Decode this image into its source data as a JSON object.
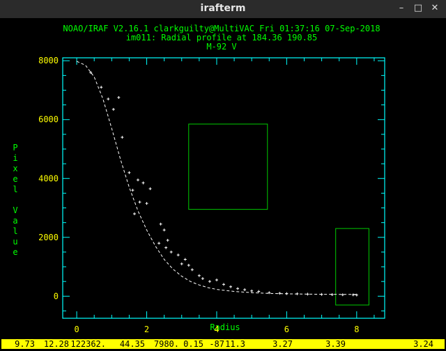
{
  "window": {
    "title": "irafterm",
    "buttons": {
      "minimize": "–",
      "maximize": "□",
      "close": "✕"
    }
  },
  "plot": {
    "header_line1": "NOAO/IRAF V2.16.1 clarkguilty@MultiVAC Fri 01:37:16 07-Sep-2018",
    "header_line2": "im011: Radial profile at 184.36 190.85",
    "header_line3": "M-92 V"
  },
  "chart_data": {
    "type": "scatter",
    "title": "im011: Radial profile at 184.36 190.85",
    "subtitle": "M-92 V",
    "xlabel": "Radius",
    "ylabel": "Pixel Value",
    "xlim": [
      -0.4,
      8.8
    ],
    "ylim": [
      -750,
      8100
    ],
    "x_ticks": [
      "0",
      "2",
      "4",
      "6",
      "8"
    ],
    "x_tick_values": [
      0,
      2,
      4,
      6,
      8
    ],
    "y_ticks": [
      "0",
      "2000",
      "4000",
      "6000",
      "8000"
    ],
    "y_tick_values": [
      0,
      2000,
      4000,
      6000,
      8000
    ],
    "fit_curve": {
      "name": "profile fit",
      "x": [
        0,
        0.25,
        0.5,
        0.75,
        1.0,
        1.25,
        1.5,
        1.75,
        2.0,
        2.25,
        2.5,
        2.75,
        3.0,
        3.25,
        3.5,
        3.75,
        4.0,
        4.5,
        5.0,
        5.5,
        6.0,
        7.0,
        8.0
      ],
      "y": [
        7980,
        7850,
        7450,
        6700,
        5700,
        4650,
        3700,
        2900,
        2250,
        1700,
        1250,
        920,
        680,
        500,
        380,
        290,
        230,
        160,
        120,
        95,
        80,
        65,
        60
      ]
    },
    "points": {
      "name": "pixels",
      "x": [
        0.4,
        0.7,
        0.9,
        1.05,
        1.2,
        1.3,
        1.5,
        1.6,
        1.75,
        1.9,
        2.0,
        2.1,
        1.8,
        1.65,
        2.4,
        2.5,
        2.6,
        2.35,
        2.55,
        2.7,
        2.9,
        3.0,
        3.1,
        3.3,
        3.2,
        3.5,
        3.6,
        3.8,
        4.0,
        4.2,
        4.4,
        4.6,
        4.8,
        5.0,
        5.2,
        5.5,
        5.8,
        6.0,
        6.3,
        6.6,
        7.0,
        7.3,
        7.6,
        7.9,
        8.0
      ],
      "y": [
        7600,
        7100,
        6700,
        6350,
        6750,
        5400,
        4200,
        3600,
        3950,
        3850,
        3150,
        3650,
        3200,
        2800,
        2450,
        2250,
        1900,
        1800,
        1650,
        1500,
        1400,
        1100,
        1250,
        900,
        1050,
        700,
        600,
        500,
        550,
        400,
        320,
        260,
        220,
        180,
        160,
        120,
        100,
        90,
        80,
        70,
        60,
        55,
        50,
        45,
        40
      ]
    },
    "boxes": [
      {
        "name": "marker-box-1",
        "x_range": [
          3.2,
          5.45
        ],
        "y_range": [
          2950,
          5850
        ]
      },
      {
        "name": "marker-box-2",
        "x_range": [
          7.4,
          8.35
        ],
        "y_range": [
          -300,
          2300
        ]
      }
    ],
    "colors": {
      "frame": "#00ffff",
      "labels": "#00ff00",
      "ticklabels": "#ffff00",
      "data": "#ffffff",
      "boxes": "#00cc00"
    }
  },
  "status": {
    "fields": [
      "9.73",
      "12.28",
      "122362.",
      "44.35",
      "7980.",
      "0.15",
      "-87",
      "11.3",
      "3.27",
      "3.39",
      "3.24"
    ]
  }
}
